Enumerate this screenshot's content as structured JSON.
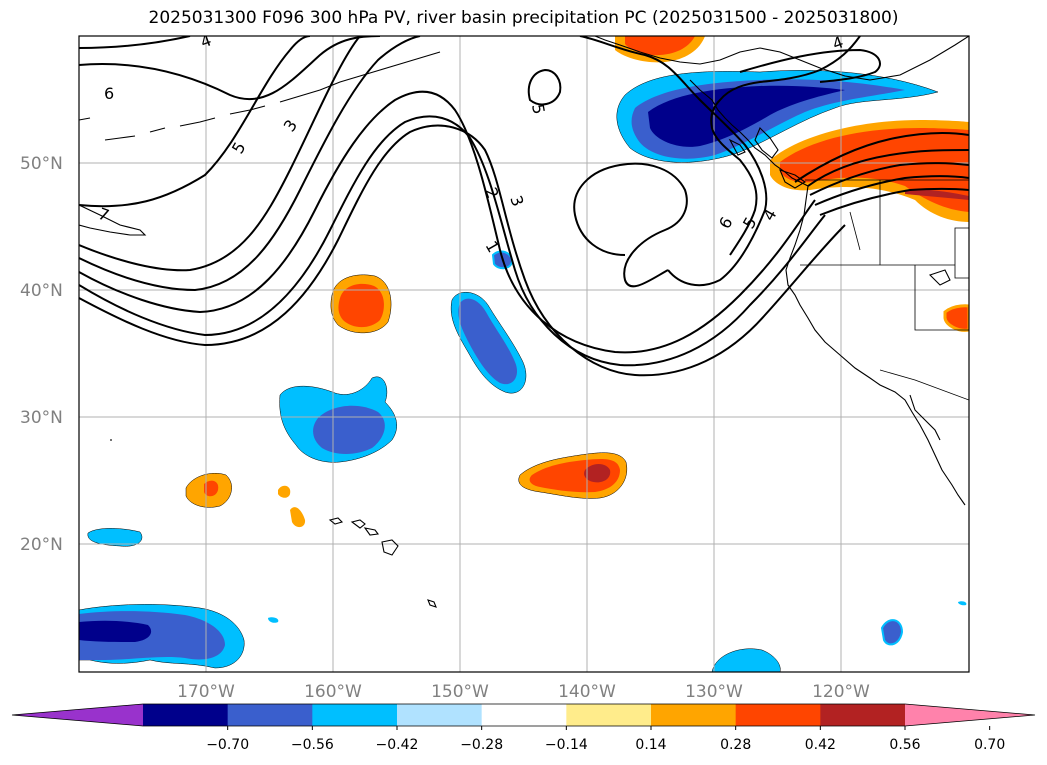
{
  "title": "2025031300 F096 300 hPa PV, river basin precipitation PC (2025031500 - 2025031800)",
  "map": {
    "lat_labels": [
      "50°N",
      "40°N",
      "30°N",
      "20°N"
    ],
    "lon_labels": [
      "170°W",
      "160°W",
      "150°W",
      "140°W",
      "130°W",
      "120°W"
    ],
    "pv_contour_labels": [
      "4",
      "6",
      "5",
      "3",
      "7",
      "2",
      "3",
      "1",
      "5",
      "4",
      "6",
      "5",
      "4"
    ],
    "pv_contour_levels": [
      1,
      2,
      3,
      4,
      5,
      6,
      7
    ]
  },
  "colorbar": {
    "tick_labels": [
      "−0.70",
      "−0.56",
      "−0.42",
      "−0.28",
      "−0.14",
      "0.14",
      "0.28",
      "0.42",
      "0.56",
      "0.70"
    ],
    "bounds": [
      -0.7,
      -0.56,
      -0.42,
      -0.28,
      -0.14,
      0.14,
      0.28,
      0.42,
      0.56,
      0.7
    ],
    "colors": [
      "#9932cc",
      "#00008b",
      "#3a5fcd",
      "#00bfff",
      "#b0e2ff",
      "#ffffff",
      "#ffec8b",
      "#ffa500",
      "#ff4500",
      "#b22222",
      "#ff82ab"
    ]
  }
}
